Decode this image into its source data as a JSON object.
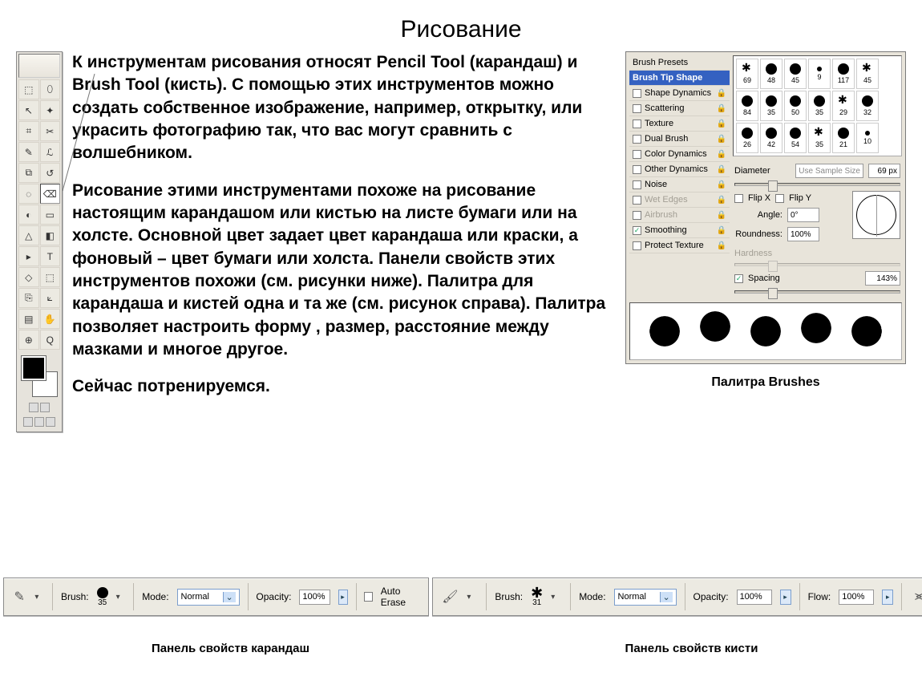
{
  "title": "Рисование",
  "paragraphs": {
    "p1": "К инструментам рисования относят Pencil Tool (карандаш) и Brush Tool (кисть). С помощью этих инструментов можно создать собственное изображение, например, открытку, или украсить фотографию так, что вас могут сравнить с волшебником.",
    "p2": "Рисование этими инструментами похоже на рисование настоящим карандашом или кистью на листе бумаги или на холсте. Основной цвет задает цвет карандаша или краски, а фоновый – цвет бумаги или холста. Панели свойств этих инструментов похожи (см. рисунки ниже). Палитра для карандаша и кистей одна и та же (см. рисунок справа). Палитра позволяет настроить форму , размер, расстояние между мазками и многое другое.",
    "p3": "Сейчас потренируемся."
  },
  "toolbox": {
    "tools_glyphs": [
      "⬚",
      "⬯",
      "↖",
      "✦",
      "⌗",
      "✂",
      "✎",
      "ℒ",
      "⧉",
      "↺",
      "◌",
      "⌫",
      "◐",
      "▭",
      "△",
      "◧",
      "▸",
      "T",
      "◇",
      "⬚",
      "⎘",
      "⟀",
      "▤",
      "✋",
      "⊕",
      "Q"
    ],
    "fg_color": "#000000",
    "bg_color": "#ffffff"
  },
  "brushes_panel": {
    "caption": "Палитра Brushes",
    "left_rows": [
      {
        "label": "Brush Presets",
        "type": "header"
      },
      {
        "label": "Brush Tip Shape",
        "type": "selected"
      },
      {
        "label": "Shape Dynamics",
        "type": "check",
        "checked": false,
        "lock": true
      },
      {
        "label": "Scattering",
        "type": "check",
        "checked": false,
        "lock": true
      },
      {
        "label": "Texture",
        "type": "check",
        "checked": false,
        "lock": true
      },
      {
        "label": "Dual Brush",
        "type": "check",
        "checked": false,
        "lock": true
      },
      {
        "label": "Color Dynamics",
        "type": "check",
        "checked": false,
        "lock": true
      },
      {
        "label": "Other Dynamics",
        "type": "check",
        "checked": false,
        "lock": true
      },
      {
        "label": "Noise",
        "type": "check",
        "checked": false,
        "lock": true
      },
      {
        "label": "Wet Edges",
        "type": "disabled",
        "lock": true
      },
      {
        "label": "Airbrush",
        "type": "disabled",
        "lock": true
      },
      {
        "label": "Smoothing",
        "type": "check",
        "checked": true,
        "lock": true
      },
      {
        "label": "Protect Texture",
        "type": "check",
        "checked": false,
        "lock": true
      }
    ],
    "thumbs": [
      69,
      48,
      45,
      9,
      117,
      45,
      84,
      35,
      50,
      35,
      29,
      32,
      26,
      42,
      54,
      35,
      21,
      10
    ],
    "settings": {
      "diameter_label": "Diameter",
      "use_sample": "Use Sample Size",
      "diameter_value": "69 px",
      "flipx": "Flip X",
      "flipy": "Flip Y",
      "angle_label": "Angle:",
      "angle_value": "0°",
      "roundness_label": "Roundness:",
      "roundness_value": "100%",
      "hardness_label": "Hardness",
      "spacing_label": "Spacing",
      "spacing_value": "143%"
    }
  },
  "option_bar_pencil": {
    "caption": "Панель свойств карандаш",
    "brush_label": "Brush:",
    "brush_size": "35",
    "mode_label": "Mode:",
    "mode_value": "Normal",
    "opacity_label": "Opacity:",
    "opacity_value": "100%",
    "auto_erase": "Auto Erase"
  },
  "option_bar_brush": {
    "caption": "Панель свойств кисти",
    "brush_label": "Brush:",
    "brush_size": "31",
    "mode_label": "Mode:",
    "mode_value": "Normal",
    "opacity_label": "Opacity:",
    "opacity_value": "100%",
    "flow_label": "Flow:",
    "flow_value": "100%"
  }
}
